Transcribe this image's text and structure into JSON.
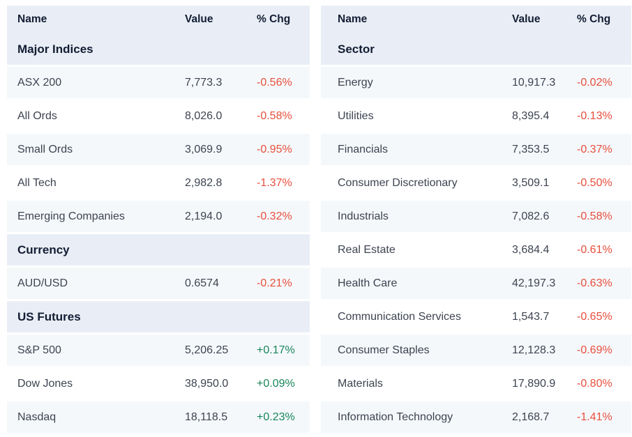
{
  "colors": {
    "header_bg": "#e9eef6",
    "stripe_bg": "#f5f8fb",
    "header_text": "#131d33",
    "body_text": "#3d4350",
    "negative": "#e74f3d",
    "positive": "#17875a"
  },
  "left_table": {
    "headers": {
      "name": "Name",
      "value": "Value",
      "chg": "% Chg"
    },
    "sections": [
      {
        "title": "Major Indices",
        "rows": [
          {
            "name": "ASX 200",
            "value": "7,773.3",
            "chg": "-0.56%",
            "dir": "neg"
          },
          {
            "name": "All Ords",
            "value": "8,026.0",
            "chg": "-0.58%",
            "dir": "neg"
          },
          {
            "name": "Small Ords",
            "value": "3,069.9",
            "chg": "-0.95%",
            "dir": "neg"
          },
          {
            "name": "All Tech",
            "value": "2,982.8",
            "chg": "-1.37%",
            "dir": "neg"
          },
          {
            "name": "Emerging Companies",
            "value": "2,194.0",
            "chg": "-0.32%",
            "dir": "neg"
          }
        ]
      },
      {
        "title": "Currency",
        "rows": [
          {
            "name": "AUD/USD",
            "value": "0.6574",
            "chg": "-0.21%",
            "dir": "neg"
          }
        ]
      },
      {
        "title": "US Futures",
        "rows": [
          {
            "name": "S&P 500",
            "value": "5,206.25",
            "chg": "+0.17%",
            "dir": "pos"
          },
          {
            "name": "Dow Jones",
            "value": "38,950.0",
            "chg": "+0.09%",
            "dir": "pos"
          },
          {
            "name": "Nasdaq",
            "value": "18,118.5",
            "chg": "+0.23%",
            "dir": "pos"
          }
        ]
      }
    ]
  },
  "right_table": {
    "headers": {
      "name": "Name",
      "value": "Value",
      "chg": "% Chg"
    },
    "sections": [
      {
        "title": "Sector",
        "rows": [
          {
            "name": "Energy",
            "value": "10,917.3",
            "chg": "-0.02%",
            "dir": "neg"
          },
          {
            "name": "Utilities",
            "value": "8,395.4",
            "chg": "-0.13%",
            "dir": "neg"
          },
          {
            "name": "Financials",
            "value": "7,353.5",
            "chg": "-0.37%",
            "dir": "neg"
          },
          {
            "name": "Consumer Discretionary",
            "value": "3,509.1",
            "chg": "-0.50%",
            "dir": "neg"
          },
          {
            "name": "Industrials",
            "value": "7,082.6",
            "chg": "-0.58%",
            "dir": "neg"
          },
          {
            "name": "Real Estate",
            "value": "3,684.4",
            "chg": "-0.61%",
            "dir": "neg"
          },
          {
            "name": "Health Care",
            "value": "42,197.3",
            "chg": "-0.63%",
            "dir": "neg"
          },
          {
            "name": "Communication Services",
            "value": "1,543.7",
            "chg": "-0.65%",
            "dir": "neg"
          },
          {
            "name": "Consumer Staples",
            "value": "12,128.3",
            "chg": "-0.69%",
            "dir": "neg"
          },
          {
            "name": "Materials",
            "value": "17,890.9",
            "chg": "-0.80%",
            "dir": "neg"
          },
          {
            "name": "Information Technology",
            "value": "2,168.7",
            "chg": "-1.41%",
            "dir": "neg"
          }
        ]
      }
    ]
  }
}
